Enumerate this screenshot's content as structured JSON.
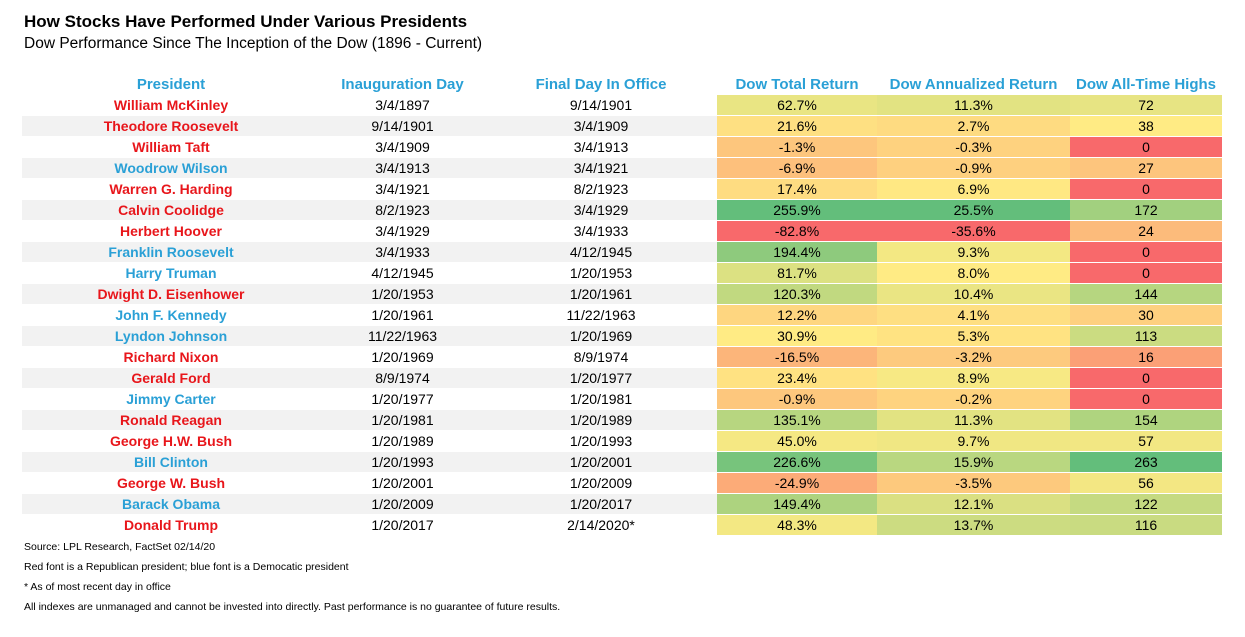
{
  "title": "How Stocks Have Performed Under Various Presidents",
  "subtitle": "Dow Performance Since The Inception of the Dow (1896 - Current)",
  "party_colors": {
    "R": "#e8161b",
    "D": "#2aa0d6"
  },
  "chart_data": {
    "type": "table",
    "columns": [
      "President",
      "Inauguration Day",
      "Final Day In Office",
      "Dow Total Return",
      "Dow Annualized Return",
      "Dow All-Time Highs"
    ],
    "rows": [
      {
        "president": "William McKinley",
        "party": "R",
        "inauguration": "3/4/1897",
        "final_day": "9/14/1901",
        "total_return": "62.7%",
        "annualized_return": "11.3%",
        "all_time_highs": "72",
        "total_return_value": 62.7,
        "annualized_return_value": 11.3,
        "all_time_highs_value": 72
      },
      {
        "president": "Theodore Roosevelt",
        "party": "R",
        "inauguration": "9/14/1901",
        "final_day": "3/4/1909",
        "total_return": "21.6%",
        "annualized_return": "2.7%",
        "all_time_highs": "38",
        "total_return_value": 21.6,
        "annualized_return_value": 2.7,
        "all_time_highs_value": 38
      },
      {
        "president": "William Taft",
        "party": "R",
        "inauguration": "3/4/1909",
        "final_day": "3/4/1913",
        "total_return": "-1.3%",
        "annualized_return": "-0.3%",
        "all_time_highs": "0",
        "total_return_value": -1.3,
        "annualized_return_value": -0.3,
        "all_time_highs_value": 0
      },
      {
        "president": "Woodrow Wilson",
        "party": "D",
        "inauguration": "3/4/1913",
        "final_day": "3/4/1921",
        "total_return": "-6.9%",
        "annualized_return": "-0.9%",
        "all_time_highs": "27",
        "total_return_value": -6.9,
        "annualized_return_value": -0.9,
        "all_time_highs_value": 27
      },
      {
        "president": "Warren G. Harding",
        "party": "R",
        "inauguration": "3/4/1921",
        "final_day": "8/2/1923",
        "total_return": "17.4%",
        "annualized_return": "6.9%",
        "all_time_highs": "0",
        "total_return_value": 17.4,
        "annualized_return_value": 6.9,
        "all_time_highs_value": 0
      },
      {
        "president": "Calvin Coolidge",
        "party": "R",
        "inauguration": "8/2/1923",
        "final_day": "3/4/1929",
        "total_return": "255.9%",
        "annualized_return": "25.5%",
        "all_time_highs": "172",
        "total_return_value": 255.9,
        "annualized_return_value": 25.5,
        "all_time_highs_value": 172
      },
      {
        "president": "Herbert Hoover",
        "party": "R",
        "inauguration": "3/4/1929",
        "final_day": "3/4/1933",
        "total_return": "-82.8%",
        "annualized_return": "-35.6%",
        "all_time_highs": "24",
        "total_return_value": -82.8,
        "annualized_return_value": -35.6,
        "all_time_highs_value": 24
      },
      {
        "president": "Franklin Roosevelt",
        "party": "D",
        "inauguration": "3/4/1933",
        "final_day": "4/12/1945",
        "total_return": "194.4%",
        "annualized_return": "9.3%",
        "all_time_highs": "0",
        "total_return_value": 194.4,
        "annualized_return_value": 9.3,
        "all_time_highs_value": 0
      },
      {
        "president": "Harry Truman",
        "party": "D",
        "inauguration": "4/12/1945",
        "final_day": "1/20/1953",
        "total_return": "81.7%",
        "annualized_return": "8.0%",
        "all_time_highs": "0",
        "total_return_value": 81.7,
        "annualized_return_value": 8.0,
        "all_time_highs_value": 0
      },
      {
        "president": "Dwight D. Eisenhower",
        "party": "R",
        "inauguration": "1/20/1953",
        "final_day": "1/20/1961",
        "total_return": "120.3%",
        "annualized_return": "10.4%",
        "all_time_highs": "144",
        "total_return_value": 120.3,
        "annualized_return_value": 10.4,
        "all_time_highs_value": 144
      },
      {
        "president": "John F. Kennedy",
        "party": "D",
        "inauguration": "1/20/1961",
        "final_day": "11/22/1963",
        "total_return": "12.2%",
        "annualized_return": "4.1%",
        "all_time_highs": "30",
        "total_return_value": 12.2,
        "annualized_return_value": 4.1,
        "all_time_highs_value": 30
      },
      {
        "president": "Lyndon Johnson",
        "party": "D",
        "inauguration": "11/22/1963",
        "final_day": "1/20/1969",
        "total_return": "30.9%",
        "annualized_return": "5.3%",
        "all_time_highs": "113",
        "total_return_value": 30.9,
        "annualized_return_value": 5.3,
        "all_time_highs_value": 113
      },
      {
        "president": "Richard Nixon",
        "party": "R",
        "inauguration": "1/20/1969",
        "final_day": "8/9/1974",
        "total_return": "-16.5%",
        "annualized_return": "-3.2%",
        "all_time_highs": "16",
        "total_return_value": -16.5,
        "annualized_return_value": -3.2,
        "all_time_highs_value": 16
      },
      {
        "president": "Gerald Ford",
        "party": "R",
        "inauguration": "8/9/1974",
        "final_day": "1/20/1977",
        "total_return": "23.4%",
        "annualized_return": "8.9%",
        "all_time_highs": "0",
        "total_return_value": 23.4,
        "annualized_return_value": 8.9,
        "all_time_highs_value": 0
      },
      {
        "president": "Jimmy Carter",
        "party": "D",
        "inauguration": "1/20/1977",
        "final_day": "1/20/1981",
        "total_return": "-0.9%",
        "annualized_return": "-0.2%",
        "all_time_highs": "0",
        "total_return_value": -0.9,
        "annualized_return_value": -0.2,
        "all_time_highs_value": 0
      },
      {
        "president": "Ronald Reagan",
        "party": "R",
        "inauguration": "1/20/1981",
        "final_day": "1/20/1989",
        "total_return": "135.1%",
        "annualized_return": "11.3%",
        "all_time_highs": "154",
        "total_return_value": 135.1,
        "annualized_return_value": 11.3,
        "all_time_highs_value": 154
      },
      {
        "president": "George H.W. Bush",
        "party": "R",
        "inauguration": "1/20/1989",
        "final_day": "1/20/1993",
        "total_return": "45.0%",
        "annualized_return": "9.7%",
        "all_time_highs": "57",
        "total_return_value": 45.0,
        "annualized_return_value": 9.7,
        "all_time_highs_value": 57
      },
      {
        "president": "Bill Clinton",
        "party": "D",
        "inauguration": "1/20/1993",
        "final_day": "1/20/2001",
        "total_return": "226.6%",
        "annualized_return": "15.9%",
        "all_time_highs": "263",
        "total_return_value": 226.6,
        "annualized_return_value": 15.9,
        "all_time_highs_value": 263
      },
      {
        "president": "George W. Bush",
        "party": "R",
        "inauguration": "1/20/2001",
        "final_day": "1/20/2009",
        "total_return": "-24.9%",
        "annualized_return": "-3.5%",
        "all_time_highs": "56",
        "total_return_value": -24.9,
        "annualized_return_value": -3.5,
        "all_time_highs_value": 56
      },
      {
        "president": "Barack Obama",
        "party": "D",
        "inauguration": "1/20/2009",
        "final_day": "1/20/2017",
        "total_return": "149.4%",
        "annualized_return": "12.1%",
        "all_time_highs": "122",
        "total_return_value": 149.4,
        "annualized_return_value": 12.1,
        "all_time_highs_value": 122
      },
      {
        "president": "Donald Trump",
        "party": "R",
        "inauguration": "1/20/2017",
        "final_day": "2/14/2020*",
        "total_return": "48.3%",
        "annualized_return": "13.7%",
        "all_time_highs": "116",
        "total_return_value": 48.3,
        "annualized_return_value": 13.7,
        "all_time_highs_value": 116
      }
    ]
  },
  "footnotes": [
    "Source: LPL Research, FactSet 02/14/20",
    "Red font is a Republican president; blue font is a Democatic president",
    "* As of most recent day in office",
    "All indexes are unmanaged and cannot be invested into directly. Past performance is no guarantee of future results."
  ]
}
